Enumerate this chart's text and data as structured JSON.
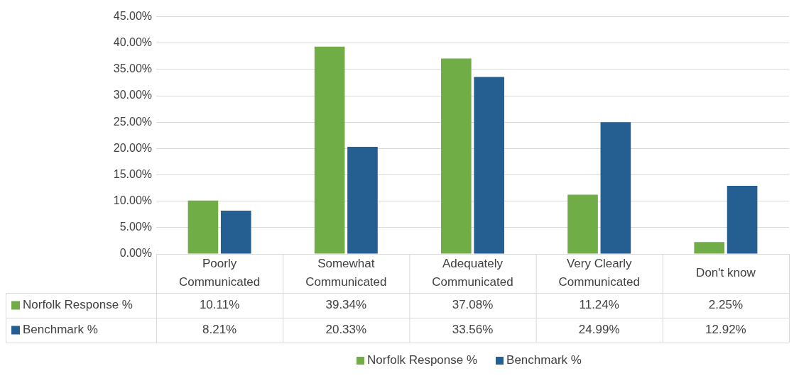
{
  "chart_data": {
    "type": "bar",
    "categories": [
      "Poorly Communicated",
      "Somewhat Communicated",
      "Adequately Communicated",
      "Very Clearly Communicated",
      "Don't know"
    ],
    "series": [
      {
        "name": "Norfolk Response %",
        "color": "#70ad47",
        "values": [
          10.11,
          39.34,
          37.08,
          11.24,
          2.25
        ],
        "value_labels": [
          "10.11%",
          "39.34%",
          "37.08%",
          "11.24%",
          "2.25%"
        ]
      },
      {
        "name": "Benchmark %",
        "color": "#255e91",
        "values": [
          8.21,
          20.33,
          33.56,
          24.99,
          12.92
        ],
        "value_labels": [
          "8.21%",
          "20.33%",
          "33.56%",
          "24.99%",
          "12.92%"
        ]
      }
    ],
    "ylim": [
      0,
      45
    ],
    "yticks": [
      {
        "value": 0,
        "label": "0.00%"
      },
      {
        "value": 5,
        "label": "5.00%"
      },
      {
        "value": 10,
        "label": "10.00%"
      },
      {
        "value": 15,
        "label": "15.00%"
      },
      {
        "value": 20,
        "label": "20.00%"
      },
      {
        "value": 25,
        "label": "25.00%"
      },
      {
        "value": 30,
        "label": "30.00%"
      },
      {
        "value": 35,
        "label": "35.00%"
      },
      {
        "value": 40,
        "label": "40.00%"
      },
      {
        "value": 45,
        "label": "45.00%"
      }
    ],
    "grid": "y",
    "legend": "bottom"
  }
}
